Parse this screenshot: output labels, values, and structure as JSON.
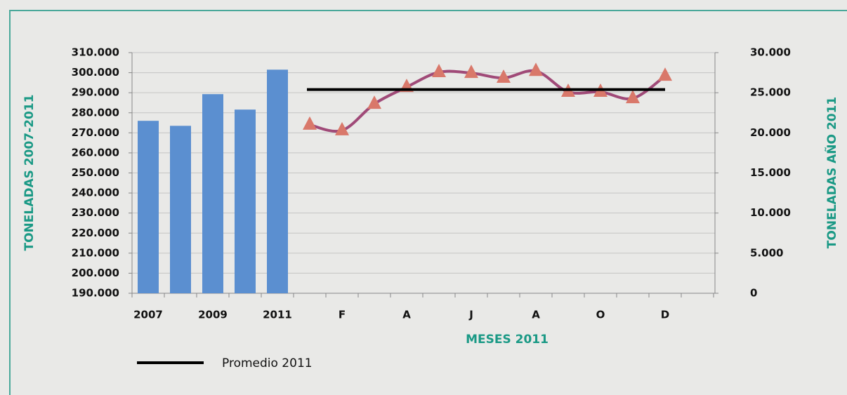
{
  "chart_data": {
    "type": "bar_line",
    "y_label": "TONELADAS 2007-2011",
    "y2_label": "TONELADAS AÑO 2011",
    "x_label": "MESES 2011",
    "categories": [
      "2007",
      null,
      "2009",
      null,
      "2011",
      null,
      "F",
      null,
      "A",
      null,
      "J",
      null,
      "A",
      null,
      "O",
      null,
      "D"
    ],
    "series": [
      {
        "color": "#5b8fd0",
        "kind": "bar",
        "values": [
          276000,
          273500,
          289300,
          281600,
          301500,
          null,
          null,
          null,
          null,
          null,
          null,
          null,
          null,
          null,
          null,
          null,
          null
        ]
      },
      {
        "color": "#a04a78",
        "marker_color": "#d9786a",
        "kind": "line",
        "axis": "y2",
        "values": [
          null,
          null,
          null,
          null,
          null,
          21000,
          20300,
          23600,
          25700,
          27550,
          27450,
          26850,
          27700,
          25100,
          25100,
          24300,
          27100
        ]
      },
      {
        "name": "Promedio 2011",
        "color": "#000000",
        "kind": "flat",
        "axis": "y2",
        "values": [
          null,
          null,
          null,
          null,
          null,
          25400,
          25400,
          25400,
          25400,
          25400,
          25400,
          25400,
          25400,
          25400,
          25400,
          25400,
          25400
        ]
      }
    ],
    "ylim": [
      190000,
      310000
    ],
    "yticks": [
      {
        "value": 190000,
        "label": "190.000"
      },
      {
        "value": 200000,
        "label": "200.000"
      },
      {
        "value": 210000,
        "label": "210.000"
      },
      {
        "value": 220000,
        "label": "220.000"
      },
      {
        "value": 230000,
        "label": "230.000"
      },
      {
        "value": 240000,
        "label": "240.000"
      },
      {
        "value": 250000,
        "label": "250.000"
      },
      {
        "value": 260000,
        "label": "260.000"
      },
      {
        "value": 270000,
        "label": "270.000"
      },
      {
        "value": 280000,
        "label": "280.000"
      },
      {
        "value": 290000,
        "label": "290.000"
      },
      {
        "value": 300000,
        "label": "300.000"
      },
      {
        "value": 310000,
        "label": "310.000"
      }
    ],
    "y2lim": [
      0,
      30000
    ],
    "y2ticks": [
      0,
      {
        "value": 5000,
        "label": "5.000"
      },
      {
        "value": 10000,
        "label": "10.000"
      },
      {
        "value": 15000,
        "label": "15.000"
      },
      {
        "value": 20000,
        "label": "20.000"
      },
      {
        "value": 25000,
        "label": "25.000"
      },
      {
        "value": 30000,
        "label": "30.000"
      }
    ],
    "grid": true
  }
}
